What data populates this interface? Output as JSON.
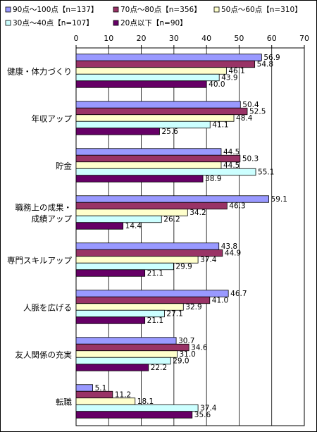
{
  "chart_data": {
    "type": "bar",
    "orientation": "horizontal",
    "categories": [
      [
        "健康・体力づくり"
      ],
      [
        "年収アップ"
      ],
      [
        "貯金"
      ],
      [
        "職務上の成果・",
        "成績アップ"
      ],
      [
        "専門スキルアップ"
      ],
      [
        "人脈を広げる"
      ],
      [
        "友人関係の充実"
      ],
      [
        "転職"
      ]
    ],
    "series": [
      {
        "name": "90点～100点【n=137】",
        "color": "#9999ff",
        "values": [
          56.9,
          50.4,
          44.5,
          59.1,
          43.8,
          46.7,
          30.7,
          5.1
        ]
      },
      {
        "name": "70点～80点【n=356】",
        "color": "#993366",
        "values": [
          54.8,
          52.5,
          50.3,
          46.3,
          44.9,
          41.0,
          34.6,
          11.2
        ]
      },
      {
        "name": "50点～60点【n=310】",
        "color": "#ffffcc",
        "values": [
          46.1,
          48.4,
          44.5,
          34.2,
          37.4,
          32.9,
          31.0,
          18.1
        ]
      },
      {
        "name": "30点～40点【n=107】",
        "color": "#ccffff",
        "values": [
          43.9,
          41.1,
          55.1,
          26.2,
          29.9,
          27.1,
          29.0,
          37.4
        ]
      },
      {
        "name": "20点以下【n=90】",
        "color": "#660066",
        "values": [
          40.0,
          25.6,
          38.9,
          14.4,
          21.1,
          21.1,
          22.2,
          35.6
        ]
      }
    ],
    "xlim": [
      0,
      70
    ],
    "ticks": [
      0,
      10,
      20,
      30,
      40,
      50,
      60,
      70
    ],
    "grid": true,
    "legend": "top"
  }
}
